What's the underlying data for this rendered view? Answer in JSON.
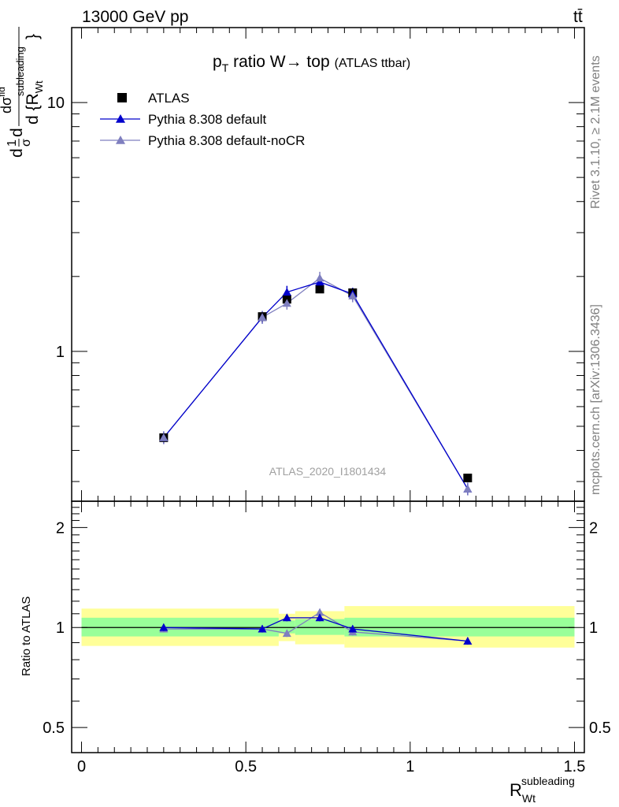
{
  "header": {
    "left": "13000 GeV pp",
    "right": "tt̄"
  },
  "title": {
    "main": "p",
    "sub": "T",
    "rest": " ratio W",
    "arrow": "→",
    "tail": " top",
    "small": "(ATLAS ttbar)"
  },
  "ylabel_main": {
    "a": "d",
    "frac1_num": "1",
    "frac1_den": "σ",
    "b": "d",
    "frac2_num": "dσ",
    "frac2_num_sup": "fid",
    "frac2_den": "d {R",
    "frac2_den_sup": "subleading",
    "frac2_den_sub": "Wt",
    "close": "}"
  },
  "ylabel_ratio": "Ratio to ATLAS",
  "xlabel": {
    "base": "R",
    "sup": "subleading",
    "sub": "Wt"
  },
  "side_rivet": "Rivet 3.1.10, ≥ 2.1M events",
  "side_mcplots": "mcplots.cern.ch [arXiv:1306.3436]",
  "analysis_id": "ATLAS_2020_I1801434",
  "colors": {
    "data": "#000000",
    "default": "#0000cc",
    "noCR": "#7f7fbf",
    "band_inner": "#99ff99",
    "band_outer": "#ffff99"
  },
  "chart_data": [
    {
      "type": "scatter",
      "yscale": "log",
      "ylim": [
        0.25,
        20
      ],
      "xlim": [
        -0.03,
        1.53
      ],
      "x": [
        0.25,
        0.55,
        0.625,
        0.725,
        0.825,
        1.175
      ],
      "xedges": [
        0.0,
        0.5,
        0.6,
        0.65,
        0.8,
        1.5
      ],
      "yticks": [
        1,
        10
      ],
      "ytick_labels": [
        "1",
        "10"
      ],
      "series": [
        {
          "name": "ATLAS",
          "marker": "square",
          "values": [
            0.45,
            1.38,
            1.62,
            1.78,
            1.72,
            0.31
          ]
        },
        {
          "name": "Pythia 8.308 default",
          "marker": "triangle",
          "values": [
            0.45,
            1.37,
            1.73,
            1.9,
            1.7,
            0.28
          ]
        },
        {
          "name": "Pythia 8.308 default-noCR",
          "marker": "triangle",
          "values": [
            0.45,
            1.37,
            1.56,
            1.97,
            1.67,
            0.28
          ]
        }
      ]
    },
    {
      "type": "scatter",
      "yscale": "log",
      "ylim": [
        0.42,
        2.4
      ],
      "xlim": [
        -0.03,
        1.53
      ],
      "yticks": [
        0.5,
        1,
        2
      ],
      "ytick_labels": [
        "0.5",
        "1",
        "2"
      ],
      "xticks": [
        0,
        0.5,
        1,
        1.5
      ],
      "xtick_labels": [
        "0",
        "0.5",
        "1",
        "1.5"
      ],
      "x": [
        0.25,
        0.55,
        0.625,
        0.725,
        0.825,
        1.175
      ],
      "bands": [
        {
          "x0": 0.0,
          "x1": 0.6,
          "inner": [
            0.94,
            1.07
          ],
          "outer": [
            0.88,
            1.14
          ]
        },
        {
          "x0": 0.6,
          "x1": 0.65,
          "inner": [
            0.96,
            1.05
          ],
          "outer": [
            0.91,
            1.1
          ]
        },
        {
          "x0": 0.65,
          "x1": 0.8,
          "inner": [
            0.95,
            1.06
          ],
          "outer": [
            0.89,
            1.12
          ]
        },
        {
          "x0": 0.8,
          "x1": 1.5,
          "inner": [
            0.94,
            1.07
          ],
          "outer": [
            0.87,
            1.16
          ]
        }
      ],
      "series": [
        {
          "name": "Pythia 8.308 default",
          "values": [
            1.0,
            0.99,
            1.07,
            1.07,
            0.99,
            0.91
          ]
        },
        {
          "name": "Pythia 8.308 default-noCR",
          "values": [
            0.99,
            0.99,
            0.96,
            1.11,
            0.97,
            0.91
          ]
        }
      ]
    }
  ]
}
